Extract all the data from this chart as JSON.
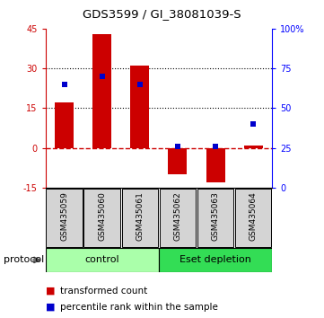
{
  "title": "GDS3599 / GI_38081039-S",
  "samples": [
    "GSM435059",
    "GSM435060",
    "GSM435061",
    "GSM435062",
    "GSM435063",
    "GSM435064"
  ],
  "red_values": [
    17.0,
    43.0,
    31.0,
    -10.0,
    -13.0,
    1.0
  ],
  "blue_values_pct": [
    65.0,
    70.0,
    65.0,
    26.0,
    26.0,
    40.0
  ],
  "ylim_left": [
    -15,
    45
  ],
  "ylim_right": [
    0,
    100
  ],
  "yticks_left": [
    -15,
    0,
    15,
    30,
    45
  ],
  "yticks_right": [
    0,
    25,
    50,
    75,
    100
  ],
  "hlines": [
    15,
    30
  ],
  "groups": [
    {
      "label": "control",
      "start": 0,
      "end": 3,
      "color": "#aaffaa"
    },
    {
      "label": "Eset depletion",
      "start": 3,
      "end": 6,
      "color": "#33dd55"
    }
  ],
  "red_color": "#cc0000",
  "blue_color": "#0000cc",
  "zero_color": "#cc0000",
  "legend_red": "transformed count",
  "legend_blue": "percentile rank within the sample",
  "protocol_label": "protocol"
}
